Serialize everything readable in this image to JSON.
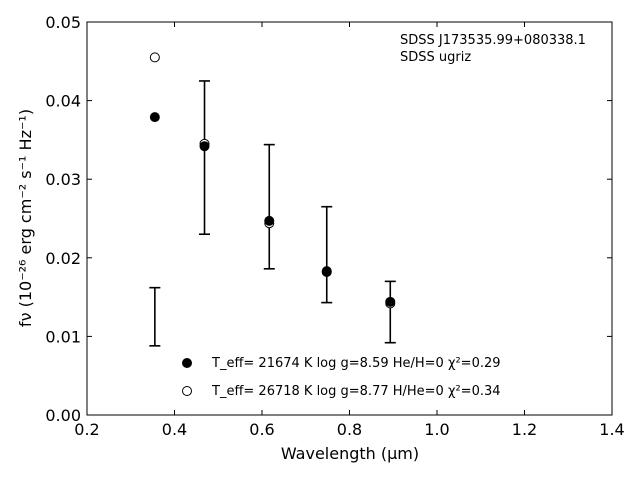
{
  "chart_data": {
    "type": "scatter",
    "xlabel": "Wavelength (μm)",
    "ylabel": "fν (10⁻²⁶ erg cm⁻² s⁻¹ Hz⁻¹)",
    "xlim": [
      0.2,
      1.4
    ],
    "ylim": [
      0.0,
      0.05
    ],
    "xticks": [
      "0.2",
      "0.4",
      "0.6",
      "0.8",
      "1.0",
      "1.2",
      "1.4"
    ],
    "yticks": [
      "0.00",
      "0.01",
      "0.02",
      "0.03",
      "0.04",
      "0.05"
    ],
    "annotations": [
      "SDSS J173535.99+080338.1",
      "SDSS ugriz"
    ],
    "observed": {
      "x": [
        0.3551,
        0.4686,
        0.6166,
        0.748,
        0.8932
      ],
      "y": [
        0.0125,
        0.03275,
        0.0265,
        0.0204,
        0.0131
      ],
      "err": [
        0.0037,
        0.00975,
        0.0079,
        0.0061,
        0.0039
      ]
    },
    "series": [
      {
        "name": "T_eff= 21674 K  log g=8.59  He/H=0  χ²=0.29",
        "marker": "filled",
        "x": [
          0.3551,
          0.4686,
          0.6166,
          0.748,
          0.8932
        ],
        "y": [
          0.0379,
          0.0342,
          0.0247,
          0.0183,
          0.0144
        ]
      },
      {
        "name": "T_eff= 26718 K  log g=8.77  H/He=0  χ²=0.34",
        "marker": "open",
        "x": [
          0.3551,
          0.4686,
          0.6166,
          0.748,
          0.8932
        ],
        "y": [
          0.0455,
          0.0345,
          0.0244,
          0.0182,
          0.0142
        ]
      }
    ],
    "legend": "lower-center",
    "grid": false
  }
}
